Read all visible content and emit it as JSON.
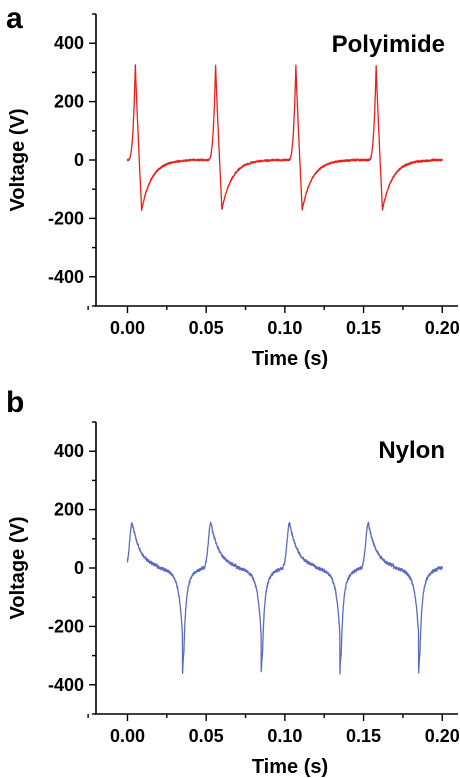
{
  "chart_data": [
    {
      "type": "line",
      "panel_label": "a",
      "annotation": "Polyimide",
      "xlabel": "Time (s)",
      "ylabel": "Voltage (V)",
      "xlim": [
        -0.02,
        0.21
      ],
      "ylim": [
        -500,
        500
      ],
      "x_ticks": [
        "0.00",
        "0.05",
        "0.10",
        "0.15",
        "0.20"
      ],
      "y_ticks": [
        "400",
        "200",
        "0",
        "-200",
        "-400"
      ],
      "color": "#e8201a",
      "period": 0.051,
      "pulse_centers": [
        0.005,
        0.056,
        0.107,
        0.158
      ],
      "x": [
        0.0,
        0.002,
        0.004,
        0.005,
        0.006,
        0.008,
        0.009,
        0.012,
        0.016,
        0.02,
        0.025,
        0.03,
        0.04,
        0.05,
        0.054,
        0.056,
        0.2
      ],
      "y": [
        5,
        60,
        260,
        320,
        240,
        -40,
        -165,
        -120,
        -70,
        -40,
        -15,
        -5,
        -2,
        10,
        150,
        320,
        15
      ],
      "series_shape": {
        "peak": 325,
        "trough": -170
      }
    },
    {
      "type": "line",
      "panel_label": "b",
      "annotation": "Nylon",
      "xlabel": "Time (s)",
      "ylabel": "Voltage (V)",
      "xlim": [
        -0.02,
        0.21
      ],
      "ylim": [
        -500,
        500
      ],
      "x_ticks": [
        "0.00",
        "0.05",
        "0.10",
        "0.15",
        "0.20"
      ],
      "y_ticks": [
        "400",
        "200",
        "0",
        "-200",
        "-400"
      ],
      "color": "#5b6cc0",
      "period": 0.05,
      "pulse_centers": [
        0.003,
        0.053,
        0.103,
        0.153
      ],
      "spike_centers": [
        0.035,
        0.085,
        0.135,
        0.185
      ],
      "x": [
        0.0,
        0.003,
        0.008,
        0.015,
        0.025,
        0.03,
        0.034,
        0.035,
        0.037,
        0.042,
        0.05,
        0.053,
        0.2
      ],
      "y": [
        20,
        155,
        80,
        20,
        -5,
        -40,
        -200,
        -360,
        -160,
        -40,
        60,
        155,
        20
      ],
      "series_shape": {
        "peak": 155,
        "trough": -360
      }
    }
  ]
}
